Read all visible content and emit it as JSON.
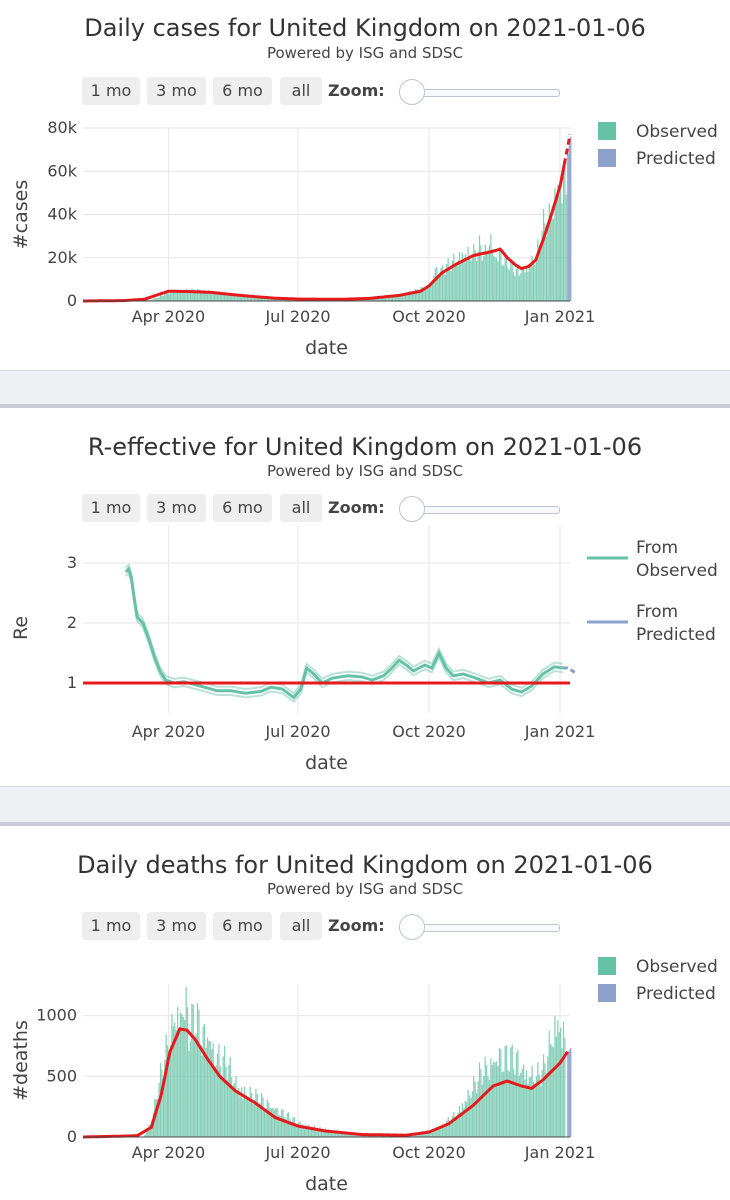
{
  "controls": {
    "buttons": [
      "1 mo",
      "3 mo",
      "6 mo",
      "all"
    ],
    "zoom_label": "Zoom:"
  },
  "colors": {
    "observed": "#66c2a5",
    "predicted": "#8da0cb",
    "trend": "#e41a1c"
  },
  "chart_data": [
    {
      "type": "bar",
      "title": "Daily cases for United Kingdom on 2021-01-06",
      "subtitle": "Powered by ISG and SDSC",
      "xlabel": "date",
      "ylabel": "#cases",
      "x_ticks": [
        "Apr 2020",
        "Jul 2020",
        "Oct 2020",
        "Jan 2021"
      ],
      "y_ticks": [
        "0",
        "20k",
        "40k",
        "60k",
        "80k"
      ],
      "ylim": [
        0,
        80000
      ],
      "grid": true,
      "legend": [
        "Observed",
        "Predicted"
      ],
      "legend_position": "top-right",
      "series": [
        {
          "name": "Observed",
          "kind": "bar",
          "points": [
            [
              "2020-03-01",
              40
            ],
            [
              "2020-03-10",
              100
            ],
            [
              "2020-03-20",
              800
            ],
            [
              "2020-03-25",
              2000
            ],
            [
              "2020-04-01",
              4200
            ],
            [
              "2020-04-10",
              5000
            ],
            [
              "2020-04-20",
              4800
            ],
            [
              "2020-05-01",
              4600
            ],
            [
              "2020-05-10",
              3500
            ],
            [
              "2020-05-20",
              2800
            ],
            [
              "2020-06-01",
              1800
            ],
            [
              "2020-06-15",
              1200
            ],
            [
              "2020-07-01",
              800
            ],
            [
              "2020-07-15",
              650
            ],
            [
              "2020-08-01",
              800
            ],
            [
              "2020-08-15",
              1000
            ],
            [
              "2020-09-01",
              1500
            ],
            [
              "2020-09-10",
              2700
            ],
            [
              "2020-09-20",
              4500
            ],
            [
              "2020-10-01",
              7000
            ],
            [
              "2020-10-05",
              15000
            ],
            [
              "2020-10-10",
              14000
            ],
            [
              "2020-10-20",
              20000
            ],
            [
              "2020-10-25",
              23000
            ],
            [
              "2020-11-01",
              22000
            ],
            [
              "2020-11-05",
              25000
            ],
            [
              "2020-11-10",
              22000
            ],
            [
              "2020-11-12",
              33000
            ],
            [
              "2020-11-15",
              22000
            ],
            [
              "2020-11-20",
              22000
            ],
            [
              "2020-11-25",
              18000
            ],
            [
              "2020-12-01",
              14000
            ],
            [
              "2020-12-05",
              15000
            ],
            [
              "2020-12-10",
              17000
            ],
            [
              "2020-12-15",
              21000
            ],
            [
              "2020-12-20",
              35000
            ],
            [
              "2020-12-25",
              40000
            ],
            [
              "2020-12-29",
              53000
            ],
            [
              "2021-01-02",
              57000
            ],
            [
              "2021-01-05",
              61000
            ]
          ]
        },
        {
          "name": "Predicted",
          "kind": "bar",
          "points": [
            [
              "2021-01-06",
              68000
            ],
            [
              "2021-01-07",
              72000
            ],
            [
              "2021-01-08",
              76000
            ]
          ]
        },
        {
          "name": "trend",
          "kind": "line",
          "points": [
            [
              "2020-02-01",
              0
            ],
            [
              "2020-03-01",
              200
            ],
            [
              "2020-03-15",
              800
            ],
            [
              "2020-03-25",
              3000
            ],
            [
              "2020-04-01",
              4500
            ],
            [
              "2020-04-15",
              4400
            ],
            [
              "2020-05-01",
              4000
            ],
            [
              "2020-05-15",
              3000
            ],
            [
              "2020-06-01",
              2000
            ],
            [
              "2020-06-15",
              1300
            ],
            [
              "2020-07-01",
              900
            ],
            [
              "2020-08-01",
              800
            ],
            [
              "2020-08-20",
              1200
            ],
            [
              "2020-09-10",
              2600
            ],
            [
              "2020-09-25",
              4500
            ],
            [
              "2020-10-01",
              7000
            ],
            [
              "2020-10-10",
              13000
            ],
            [
              "2020-10-20",
              17000
            ],
            [
              "2020-11-01",
              21000
            ],
            [
              "2020-11-15",
              23000
            ],
            [
              "2020-11-20",
              24000
            ],
            [
              "2020-11-25",
              20000
            ],
            [
              "2020-12-01",
              16500
            ],
            [
              "2020-12-05",
              15000
            ],
            [
              "2020-12-10",
              16000
            ],
            [
              "2020-12-15",
              19000
            ],
            [
              "2020-12-20",
              28000
            ],
            [
              "2020-12-25",
              38000
            ],
            [
              "2021-01-01",
              53000
            ],
            [
              "2021-01-06",
              70000
            ],
            [
              "2021-01-08",
              77000
            ]
          ]
        }
      ]
    },
    {
      "type": "line",
      "title": "R-effective for United Kingdom on 2021-01-06",
      "subtitle": "Powered by ISG and SDSC",
      "xlabel": "date",
      "ylabel": "Re",
      "x_ticks": [
        "Apr 2020",
        "Jul 2020",
        "Oct 2020",
        "Jan 2021"
      ],
      "y_ticks": [
        "1",
        "2",
        "3"
      ],
      "ylim": [
        0.5,
        3.5
      ],
      "grid": true,
      "legend": [
        "From Observed",
        "From Predicted"
      ],
      "legend_position": "top-right",
      "reference_line": 1,
      "series": [
        {
          "name": "From Observed",
          "points": [
            [
              "2020-03-02",
              2.85
            ],
            [
              "2020-03-04",
              2.9
            ],
            [
              "2020-03-06",
              2.75
            ],
            [
              "2020-03-08",
              2.4
            ],
            [
              "2020-03-10",
              2.1
            ],
            [
              "2020-03-14",
              2.0
            ],
            [
              "2020-03-18",
              1.75
            ],
            [
              "2020-03-22",
              1.45
            ],
            [
              "2020-03-26",
              1.2
            ],
            [
              "2020-03-30",
              1.05
            ],
            [
              "2020-04-05",
              1.0
            ],
            [
              "2020-04-12",
              1.02
            ],
            [
              "2020-04-20",
              0.97
            ],
            [
              "2020-04-28",
              0.92
            ],
            [
              "2020-05-05",
              0.87
            ],
            [
              "2020-05-15",
              0.87
            ],
            [
              "2020-05-25",
              0.83
            ],
            [
              "2020-06-05",
              0.86
            ],
            [
              "2020-06-12",
              0.93
            ],
            [
              "2020-06-20",
              0.9
            ],
            [
              "2020-06-28",
              0.76
            ],
            [
              "2020-07-03",
              0.9
            ],
            [
              "2020-07-07",
              1.25
            ],
            [
              "2020-07-12",
              1.15
            ],
            [
              "2020-07-18",
              1.0
            ],
            [
              "2020-07-25",
              1.08
            ],
            [
              "2020-08-05",
              1.12
            ],
            [
              "2020-08-15",
              1.1
            ],
            [
              "2020-08-22",
              1.05
            ],
            [
              "2020-08-30",
              1.12
            ],
            [
              "2020-09-05",
              1.25
            ],
            [
              "2020-09-10",
              1.38
            ],
            [
              "2020-09-15",
              1.3
            ],
            [
              "2020-09-20",
              1.2
            ],
            [
              "2020-09-28",
              1.3
            ],
            [
              "2020-10-03",
              1.25
            ],
            [
              "2020-10-08",
              1.5
            ],
            [
              "2020-10-13",
              1.25
            ],
            [
              "2020-10-18",
              1.12
            ],
            [
              "2020-10-25",
              1.15
            ],
            [
              "2020-11-03",
              1.08
            ],
            [
              "2020-11-12",
              1.0
            ],
            [
              "2020-11-20",
              1.05
            ],
            [
              "2020-11-28",
              0.9
            ],
            [
              "2020-12-05",
              0.85
            ],
            [
              "2020-12-12",
              0.95
            ],
            [
              "2020-12-20",
              1.15
            ],
            [
              "2020-12-28",
              1.27
            ],
            [
              "2021-01-03",
              1.25
            ]
          ]
        },
        {
          "name": "From Predicted",
          "points": [
            [
              "2021-01-03",
              1.25
            ],
            [
              "2021-01-06",
              1.25
            ],
            [
              "2021-01-10",
              1.2
            ],
            [
              "2021-01-12",
              1.15
            ]
          ]
        }
      ]
    },
    {
      "type": "bar",
      "title": "Daily deaths for United Kingdom on 2021-01-06",
      "subtitle": "Powered by ISG and SDSC",
      "xlabel": "date",
      "ylabel": "#deaths",
      "x_ticks": [
        "Apr 2020",
        "Jul 2020",
        "Oct 2020",
        "Jan 2021"
      ],
      "y_ticks": [
        "0",
        "500",
        "1000"
      ],
      "ylim": [
        0,
        1260
      ],
      "grid": true,
      "legend": [
        "Observed",
        "Predicted"
      ],
      "legend_position": "top-right",
      "series": [
        {
          "name": "Observed",
          "kind": "bar",
          "points": [
            [
              "2020-03-15",
              20
            ],
            [
              "2020-03-20",
              150
            ],
            [
              "2020-03-25",
              450
            ],
            [
              "2020-03-30",
              700
            ],
            [
              "2020-04-03",
              900
            ],
            [
              "2020-04-06",
              1100
            ],
            [
              "2020-04-09",
              1000
            ],
            [
              "2020-04-12",
              1200
            ],
            [
              "2020-04-15",
              900
            ],
            [
              "2020-04-20",
              1000
            ],
            [
              "2020-04-24",
              850
            ],
            [
              "2020-04-28",
              900
            ],
            [
              "2020-05-03",
              700
            ],
            [
              "2020-05-07",
              650
            ],
            [
              "2020-05-12",
              600
            ],
            [
              "2020-05-18",
              450
            ],
            [
              "2020-05-25",
              380
            ],
            [
              "2020-06-01",
              330
            ],
            [
              "2020-06-10",
              280
            ],
            [
              "2020-06-20",
              200
            ],
            [
              "2020-07-01",
              120
            ],
            [
              "2020-07-15",
              70
            ],
            [
              "2020-08-01",
              30
            ],
            [
              "2020-09-01",
              15
            ],
            [
              "2020-09-20",
              25
            ],
            [
              "2020-10-01",
              60
            ],
            [
              "2020-10-10",
              90
            ],
            [
              "2020-10-20",
              200
            ],
            [
              "2020-10-25",
              300
            ],
            [
              "2020-11-01",
              420
            ],
            [
              "2020-11-07",
              550
            ],
            [
              "2020-11-12",
              600
            ],
            [
              "2020-11-18",
              700
            ],
            [
              "2020-11-25",
              650
            ],
            [
              "2020-12-01",
              650
            ],
            [
              "2020-12-08",
              550
            ],
            [
              "2020-12-15",
              500
            ],
            [
              "2020-12-20",
              560
            ],
            [
              "2020-12-28",
              950
            ],
            [
              "2021-01-01",
              980
            ],
            [
              "2021-01-04",
              800
            ]
          ]
        },
        {
          "name": "Predicted",
          "kind": "bar",
          "points": [
            [
              "2021-01-06",
              700
            ],
            [
              "2021-01-08",
              730
            ]
          ]
        },
        {
          "name": "trend",
          "kind": "line",
          "points": [
            [
              "2020-02-01",
              0
            ],
            [
              "2020-03-10",
              10
            ],
            [
              "2020-03-20",
              80
            ],
            [
              "2020-03-27",
              350
            ],
            [
              "2020-04-02",
              700
            ],
            [
              "2020-04-09",
              890
            ],
            [
              "2020-04-14",
              880
            ],
            [
              "2020-04-20",
              800
            ],
            [
              "2020-04-28",
              650
            ],
            [
              "2020-05-07",
              500
            ],
            [
              "2020-05-18",
              380
            ],
            [
              "2020-06-01",
              280
            ],
            [
              "2020-06-15",
              160
            ],
            [
              "2020-07-01",
              90
            ],
            [
              "2020-07-20",
              50
            ],
            [
              "2020-08-15",
              20
            ],
            [
              "2020-09-15",
              15
            ],
            [
              "2020-10-01",
              40
            ],
            [
              "2020-10-15",
              110
            ],
            [
              "2020-11-01",
              260
            ],
            [
              "2020-11-15",
              420
            ],
            [
              "2020-11-25",
              460
            ],
            [
              "2020-12-05",
              420
            ],
            [
              "2020-12-12",
              400
            ],
            [
              "2020-12-20",
              470
            ],
            [
              "2021-01-01",
              610
            ],
            [
              "2021-01-08",
              730
            ]
          ]
        }
      ]
    }
  ]
}
